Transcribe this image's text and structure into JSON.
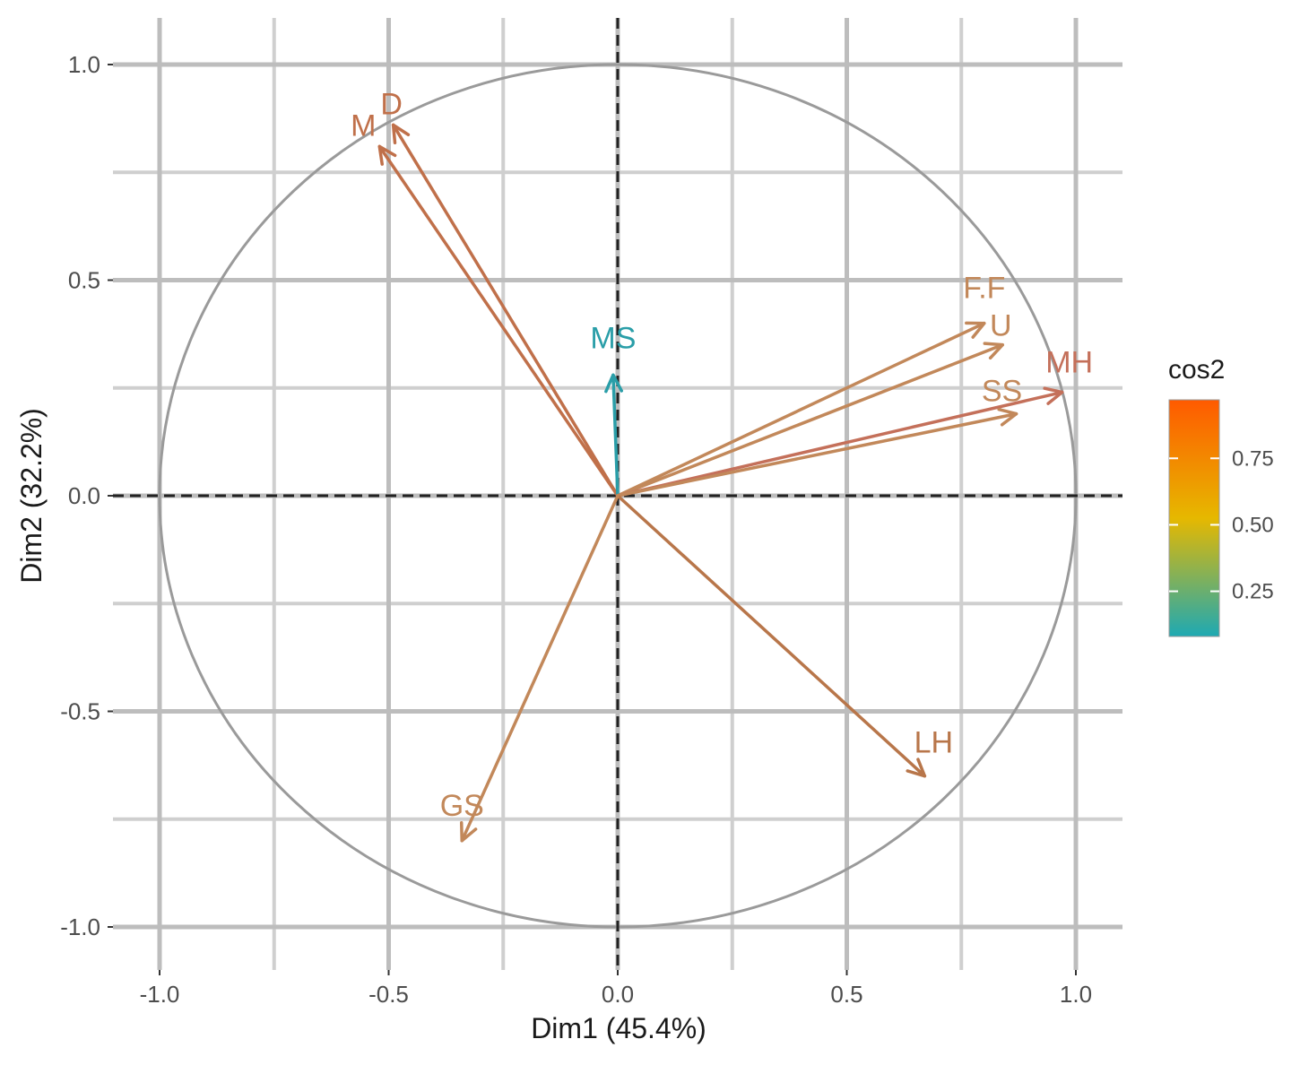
{
  "chart_data": {
    "type": "scatter",
    "subtype": "pca-correlation-circle",
    "title": "",
    "xlabel": "Dim1 (45.4%)",
    "ylabel": "Dim2 (32.2%)",
    "xlim": [
      -1.0,
      1.0
    ],
    "ylim": [
      -1.0,
      1.0
    ],
    "x_ticks": [
      -1.0,
      -0.5,
      0.0,
      0.5,
      1.0
    ],
    "y_ticks": [
      -1.0,
      -0.5,
      0.0,
      0.5,
      1.0
    ],
    "x_tick_labels": [
      "-1.0",
      "-0.5",
      "0.0",
      "0.5",
      "1.0"
    ],
    "y_tick_labels": [
      "-1.0",
      "-0.5",
      "0.0",
      "0.5",
      "1.0"
    ],
    "grid": true,
    "unit_circle": true,
    "legend": {
      "title": "cos2",
      "position": "right",
      "ticks": [
        0.25,
        0.5,
        0.75
      ],
      "tick_labels": [
        "0.25",
        "0.50",
        "0.75"
      ],
      "range": [
        0.08,
        0.97
      ],
      "colors": [
        "#1ea9b3",
        "#e6b800",
        "#ff5a00"
      ]
    },
    "variables": [
      {
        "label": "D",
        "x": -0.49,
        "y": 0.86,
        "cos2": 0.86,
        "color": "#c0704a"
      },
      {
        "label": "M",
        "x": -0.52,
        "y": 0.81,
        "cos2": 0.85,
        "color": "#c0704a"
      },
      {
        "label": "MS",
        "x": -0.01,
        "y": 0.28,
        "cos2": 0.08,
        "color": "#2a9ea8"
      },
      {
        "label": "F.F",
        "x": 0.8,
        "y": 0.4,
        "cos2": 0.7,
        "color": "#c2885a"
      },
      {
        "label": "U",
        "x": 0.84,
        "y": 0.35,
        "cos2": 0.72,
        "color": "#c2885a"
      },
      {
        "label": "MH",
        "x": 0.97,
        "y": 0.24,
        "cos2": 0.9,
        "color": "#c4705a"
      },
      {
        "label": "SS",
        "x": 0.87,
        "y": 0.19,
        "cos2": 0.74,
        "color": "#c2885a"
      },
      {
        "label": "LH",
        "x": 0.67,
        "y": -0.65,
        "cos2": 0.8,
        "color": "#b8764a"
      },
      {
        "label": "GS",
        "x": -0.34,
        "y": -0.8,
        "cos2": 0.72,
        "color": "#c2885a"
      }
    ]
  }
}
